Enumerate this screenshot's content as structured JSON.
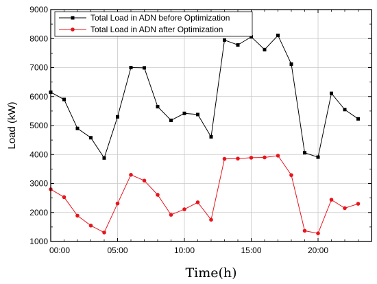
{
  "chart_data": {
    "type": "line",
    "xlabel": "Time(h)",
    "ylabel": "Load (kW)",
    "xlim": [
      0,
      24
    ],
    "ylim": [
      1000,
      9000
    ],
    "x_ticks": [
      {
        "value": 0,
        "label": "00:00"
      },
      {
        "value": 5,
        "label": "05:00"
      },
      {
        "value": 10,
        "label": "10:00"
      },
      {
        "value": 15,
        "label": "15:00"
      },
      {
        "value": 20,
        "label": "20:00"
      }
    ],
    "y_ticks": [
      1000,
      2000,
      3000,
      4000,
      5000,
      6000,
      7000,
      8000,
      9000
    ],
    "grid": true,
    "legend_position": "top-left",
    "x": [
      0,
      1,
      2,
      3,
      4,
      5,
      6,
      7,
      8,
      9,
      10,
      11,
      12,
      13,
      14,
      15,
      16,
      17,
      18,
      19,
      20,
      21,
      22,
      23
    ],
    "series": [
      {
        "name": "Total Load in ADN before Optimization",
        "color": "#000000",
        "marker": "square",
        "values": [
          6150,
          5900,
          4900,
          4580,
          3880,
          5300,
          7000,
          6990,
          5650,
          5180,
          5420,
          5380,
          4610,
          7950,
          7780,
          8060,
          7620,
          8110,
          7120,
          4060,
          3910,
          6110,
          5550,
          5230
        ]
      },
      {
        "name": "Total Load in ADN after Optimization",
        "color": "#e8141c",
        "marker": "circle",
        "values": [
          2800,
          2530,
          1890,
          1550,
          1310,
          2310,
          3300,
          3100,
          2610,
          1920,
          2110,
          2350,
          1750,
          3850,
          3860,
          3890,
          3900,
          3960,
          3290,
          1370,
          1280,
          2440,
          2150,
          2300
        ]
      }
    ]
  }
}
